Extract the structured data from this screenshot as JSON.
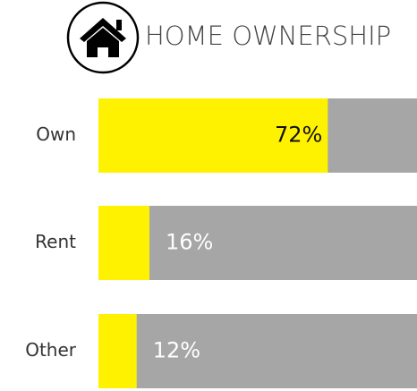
{
  "chart_data": {
    "type": "bar",
    "orientation": "horizontal",
    "title": "HOME OWNERSHIP",
    "categories": [
      "Own",
      "Rent",
      "Other"
    ],
    "values": [
      72,
      16,
      12
    ],
    "value_labels": [
      "72%",
      "16%",
      "12%"
    ],
    "color": "#fff200",
    "track_color": "#a6a6a6",
    "xlim": [
      0,
      100
    ]
  }
}
